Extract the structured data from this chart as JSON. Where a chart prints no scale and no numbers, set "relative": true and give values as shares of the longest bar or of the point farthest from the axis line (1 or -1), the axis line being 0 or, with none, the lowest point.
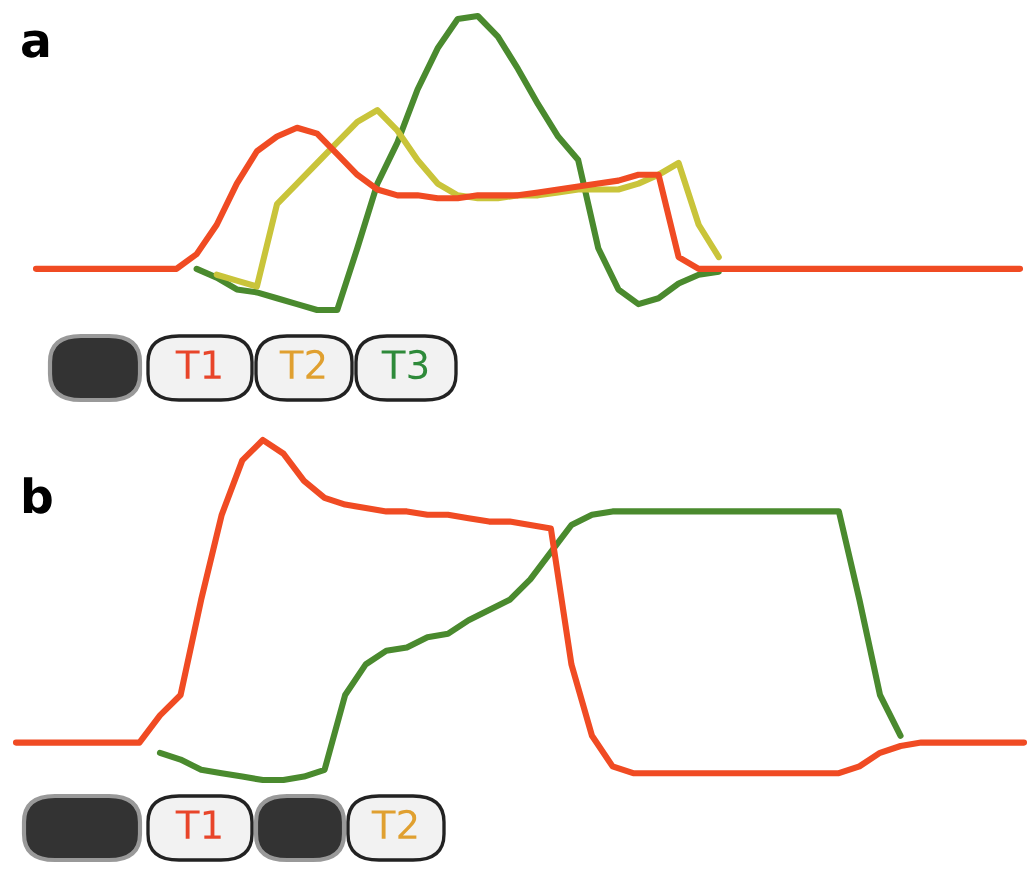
{
  "chart_data": [
    {
      "type": "line",
      "title": "a",
      "relative": true,
      "categories": [
        null,
        null,
        null,
        null,
        null,
        null,
        null,
        null,
        null,
        null,
        null,
        null,
        null,
        null,
        null,
        null,
        null,
        null,
        null,
        null,
        null,
        null,
        null,
        null,
        null,
        null,
        null,
        null,
        null,
        null,
        null,
        null,
        null,
        null,
        null,
        null,
        null,
        null,
        null,
        null,
        null,
        null,
        null,
        null,
        null,
        null,
        null,
        null,
        null,
        null
      ],
      "series": [
        {
          "color": "#f04b23",
          "values": [
            0.14,
            0.14,
            0.14,
            0.14,
            0.14,
            0.14,
            0.14,
            0.14,
            0.19,
            0.29,
            0.43,
            0.54,
            0.59,
            0.62,
            0.6,
            0.53,
            0.46,
            0.41,
            0.39,
            0.39,
            0.38,
            0.38,
            0.39,
            0.39,
            0.39,
            0.4,
            0.41,
            0.42,
            0.43,
            0.44,
            0.46,
            0.46,
            0.18,
            0.14,
            0.14,
            0.14,
            0.14,
            0.14,
            0.14,
            0.14,
            0.14,
            0.14,
            0.14,
            0.14,
            0.14,
            0.14,
            0.14,
            0.14,
            0.14,
            0.14
          ]
        },
        {
          "color": "#c9c43a",
          "values": [
            null,
            null,
            null,
            null,
            null,
            null,
            null,
            null,
            null,
            0.12,
            0.1,
            0.08,
            0.36,
            0.43,
            0.5,
            0.57,
            0.64,
            0.68,
            0.61,
            0.51,
            0.43,
            0.39,
            0.38,
            0.38,
            0.39,
            0.39,
            0.4,
            0.41,
            0.41,
            0.41,
            0.43,
            0.46,
            0.5,
            0.29,
            0.18,
            null,
            null,
            null,
            null,
            null,
            null,
            null,
            null,
            null,
            null,
            null,
            null,
            null,
            null,
            null
          ]
        },
        {
          "color": "#4a8a2e",
          "values": [
            null,
            null,
            null,
            null,
            null,
            null,
            null,
            null,
            0.14,
            0.11,
            0.07,
            0.06,
            0.04,
            0.02,
            0,
            0,
            0.21,
            0.43,
            0.57,
            0.75,
            0.89,
            0.99,
            1.0,
            0.93,
            0.82,
            0.7,
            0.59,
            0.51,
            0.21,
            0.07,
            0.02,
            0.04,
            0.09,
            0.12,
            0.13,
            null,
            null,
            null,
            null,
            null,
            null,
            null,
            null,
            null,
            null,
            null,
            null,
            null,
            null,
            null
          ]
        }
      ],
      "annotations": [
        "T1",
        "T2",
        "T3"
      ]
    },
    {
      "type": "line",
      "title": "b",
      "relative": true,
      "categories": [
        null,
        null,
        null,
        null,
        null,
        null,
        null,
        null,
        null,
        null,
        null,
        null,
        null,
        null,
        null,
        null,
        null,
        null,
        null,
        null,
        null,
        null,
        null,
        null,
        null,
        null,
        null,
        null,
        null,
        null,
        null,
        null,
        null,
        null,
        null,
        null,
        null,
        null,
        null,
        null,
        null,
        null,
        null,
        null,
        null,
        null,
        null,
        null,
        null,
        null
      ],
      "series": [
        {
          "color": "#f04b23",
          "values": [
            0.11,
            0.11,
            0.11,
            0.11,
            0.11,
            0.11,
            0.11,
            0.19,
            0.25,
            0.53,
            0.78,
            0.94,
            1.0,
            0.96,
            0.88,
            0.83,
            0.81,
            0.8,
            0.79,
            0.79,
            0.78,
            0.78,
            0.77,
            0.76,
            0.76,
            0.75,
            0.74,
            0.34,
            0.13,
            0.04,
            0.02,
            0.02,
            0.02,
            0.02,
            0.02,
            0.02,
            0.02,
            0.02,
            0.02,
            0.02,
            0.02,
            0.04,
            0.08,
            0.1,
            0.11,
            0.11,
            0.11,
            0.11,
            0.11,
            0.11
          ]
        },
        {
          "color": "#4a8a2e",
          "values": [
            null,
            null,
            null,
            null,
            null,
            null,
            null,
            0.08,
            0.06,
            0.03,
            0.02,
            0.01,
            0,
            0,
            0.01,
            0.03,
            0.25,
            0.34,
            0.38,
            0.39,
            0.42,
            0.43,
            0.47,
            0.5,
            0.53,
            0.59,
            0.67,
            0.75,
            0.78,
            0.79,
            0.79,
            0.79,
            0.79,
            0.79,
            0.79,
            0.79,
            0.79,
            0.79,
            0.79,
            0.79,
            0.79,
            0.53,
            0.25,
            0.13,
            null,
            null,
            null,
            null,
            null,
            null
          ]
        }
      ],
      "annotations": [
        "T1",
        "T2"
      ]
    }
  ]
}
